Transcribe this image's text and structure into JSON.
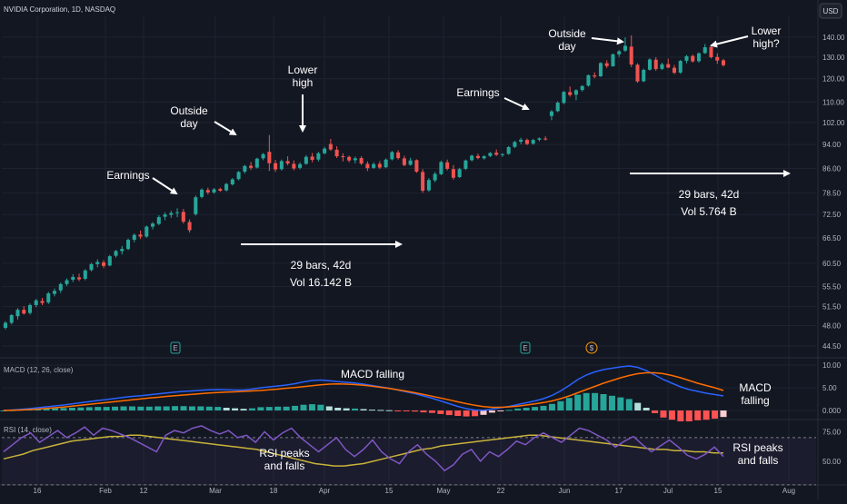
{
  "header": {
    "symbol": "NVIDIA Corporation, 1D, NASDAQ",
    "currency_button": "USD"
  },
  "colors": {
    "up": "#26a69a",
    "down": "#ef5350",
    "macd_line": "#2962ff",
    "signal_line": "#ff6d00",
    "rsi_line": "#7e57c2",
    "rsi_ma": "#c8b33a",
    "background": "#131722",
    "grid": "#1f2330",
    "text": "#b2b5be"
  },
  "chart_data": [
    {
      "type": "candlestick",
      "title": "NVIDIA Corporation, 1D, NASDAQ",
      "y_ticks": [
        "140.00",
        "130.00",
        "120.00",
        "110.00",
        "102.00",
        "94.00",
        "86.00",
        "78.50",
        "72.50",
        "66.50",
        "60.50",
        "55.50",
        "51.50",
        "48.00",
        "44.50"
      ],
      "y_scale": "log",
      "x_ticks": [
        "16",
        "Feb",
        "12",
        "Mar",
        "18",
        "Apr",
        "15",
        "May",
        "22",
        "Jun",
        "17",
        "Jul",
        "15",
        "Aug"
      ],
      "candles": [
        [
          47.6,
          48.8,
          47.3,
          48.5
        ],
        [
          48.5,
          50.1,
          48.2,
          49.9
        ],
        [
          49.7,
          51.2,
          49.1,
          50.9
        ],
        [
          50.9,
          51.6,
          50.0,
          50.2
        ],
        [
          50.3,
          52.1,
          50.0,
          51.8
        ],
        [
          51.8,
          53.0,
          51.4,
          52.7
        ],
        [
          52.6,
          53.2,
          51.8,
          52.2
        ],
        [
          52.3,
          54.4,
          52.0,
          54.1
        ],
        [
          54.0,
          55.1,
          53.5,
          54.6
        ],
        [
          54.7,
          56.3,
          54.2,
          56.0
        ],
        [
          56.0,
          57.2,
          55.6,
          56.8
        ],
        [
          56.9,
          58.1,
          56.4,
          57.5
        ],
        [
          57.4,
          58.2,
          56.6,
          57.0
        ],
        [
          57.1,
          59.2,
          56.8,
          58.9
        ],
        [
          59.0,
          60.6,
          58.7,
          60.3
        ],
        [
          60.3,
          61.4,
          59.6,
          60.8
        ],
        [
          60.7,
          61.2,
          59.4,
          59.9
        ],
        [
          60.0,
          62.4,
          59.8,
          62.1
        ],
        [
          62.2,
          63.6,
          61.8,
          63.3
        ],
        [
          63.3,
          64.5,
          62.5,
          63.8
        ],
        [
          63.8,
          66.3,
          63.5,
          66.0
        ],
        [
          66.0,
          67.6,
          65.4,
          67.2
        ],
        [
          67.3,
          68.3,
          66.2,
          66.8
        ],
        [
          66.8,
          69.6,
          66.5,
          69.3
        ],
        [
          69.3,
          70.5,
          68.6,
          70.1
        ],
        [
          70.0,
          72.3,
          69.7,
          71.8
        ],
        [
          71.9,
          73.1,
          71.0,
          72.5
        ],
        [
          72.4,
          73.5,
          71.6,
          72.9
        ],
        [
          72.9,
          74.2,
          71.8,
          73.1
        ],
        [
          73.2,
          74.0,
          70.1,
          70.6
        ],
        [
          70.5,
          71.2,
          67.8,
          68.4
        ],
        [
          72.6,
          77.8,
          72.2,
          77.3
        ],
        [
          77.4,
          79.9,
          77.0,
          79.5
        ],
        [
          79.4,
          80.1,
          78.1,
          78.7
        ],
        [
          78.7,
          80.0,
          78.3,
          79.6
        ],
        [
          79.7,
          80.1,
          78.9,
          79.2
        ],
        [
          79.3,
          81.5,
          79.0,
          81.2
        ],
        [
          81.1,
          83.0,
          80.7,
          82.6
        ],
        [
          82.7,
          85.2,
          82.3,
          84.9
        ],
        [
          85.0,
          87.2,
          84.4,
          86.8
        ],
        [
          86.9,
          88.1,
          85.5,
          86.2
        ],
        [
          86.3,
          89.5,
          86.0,
          89.2
        ],
        [
          89.3,
          91.1,
          88.7,
          90.7
        ],
        [
          91.5,
          97.4,
          85.2,
          87.7
        ],
        [
          87.7,
          88.8,
          84.9,
          85.7
        ],
        [
          85.8,
          88.9,
          85.3,
          88.4
        ],
        [
          88.4,
          90.0,
          87.0,
          87.6
        ],
        [
          87.5,
          88.6,
          85.4,
          86.0
        ],
        [
          86.2,
          88.0,
          85.7,
          87.4
        ],
        [
          87.5,
          90.4,
          87.2,
          89.8
        ],
        [
          89.9,
          91.1,
          88.0,
          88.8
        ],
        [
          88.9,
          91.5,
          88.3,
          91.0
        ],
        [
          91.0,
          93.2,
          90.6,
          92.6
        ],
        [
          94.2,
          96.0,
          91.8,
          92.3
        ],
        [
          92.2,
          93.4,
          89.4,
          90.0
        ],
        [
          90.0,
          91.0,
          88.3,
          89.7
        ],
        [
          89.8,
          90.2,
          88.0,
          88.6
        ],
        [
          88.7,
          89.9,
          87.6,
          89.3
        ],
        [
          89.4,
          90.0,
          87.1,
          87.6
        ],
        [
          87.5,
          88.3,
          85.2,
          86.1
        ],
        [
          86.2,
          88.0,
          85.9,
          87.4
        ],
        [
          87.5,
          88.4,
          85.8,
          86.3
        ],
        [
          86.4,
          89.3,
          86.1,
          88.9
        ],
        [
          89.0,
          91.8,
          88.6,
          91.4
        ],
        [
          91.3,
          92.0,
          88.9,
          89.4
        ],
        [
          89.3,
          90.2,
          86.7,
          87.1
        ],
        [
          87.2,
          89.5,
          86.9,
          88.6
        ],
        [
          88.7,
          89.0,
          84.6,
          85.0
        ],
        [
          84.9,
          85.8,
          78.6,
          79.2
        ],
        [
          79.3,
          83.0,
          78.9,
          82.4
        ],
        [
          82.3,
          84.9,
          81.7,
          84.3
        ],
        [
          84.2,
          88.6,
          83.9,
          88.1
        ],
        [
          88.0,
          88.9,
          85.4,
          85.9
        ],
        [
          85.8,
          87.1,
          82.5,
          83.1
        ],
        [
          83.3,
          86.2,
          83.0,
          85.8
        ],
        [
          85.9,
          88.9,
          85.5,
          88.6
        ],
        [
          88.7,
          90.5,
          88.3,
          90.2
        ],
        [
          90.1,
          90.9,
          89.0,
          89.4
        ],
        [
          89.3,
          90.4,
          88.9,
          90.0
        ],
        [
          90.1,
          91.4,
          89.7,
          91.1
        ],
        [
          91.2,
          92.3,
          90.1,
          90.5
        ],
        [
          90.4,
          91.0,
          89.8,
          90.7
        ],
        [
          90.8,
          93.5,
          90.5,
          93.1
        ],
        [
          93.2,
          95.3,
          92.8,
          94.9
        ],
        [
          95.0,
          96.4,
          94.1,
          95.7
        ],
        [
          95.6,
          96.1,
          93.8,
          94.2
        ],
        [
          94.3,
          96.0,
          93.9,
          95.6
        ],
        [
          95.7,
          96.5,
          95.1,
          96.2
        ],
        [
          96.1,
          96.9,
          95.4,
          95.8
        ],
        [
          104.5,
          106.8,
          102.9,
          106.3
        ],
        [
          106.4,
          110.4,
          106.0,
          109.8
        ],
        [
          109.7,
          114.7,
          109.2,
          114.3
        ],
        [
          114.2,
          116.6,
          112.3,
          113.0
        ],
        [
          113.1,
          115.4,
          110.8,
          115.0
        ],
        [
          115.1,
          117.2,
          114.4,
          116.8
        ],
        [
          117.0,
          121.9,
          116.5,
          121.6
        ],
        [
          121.5,
          122.9,
          120.2,
          121.0
        ],
        [
          121.1,
          127.6,
          120.8,
          127.2
        ],
        [
          127.1,
          128.5,
          124.9,
          125.8
        ],
        [
          125.7,
          131.8,
          125.5,
          131.4
        ],
        [
          131.4,
          133.5,
          130.1,
          132.9
        ],
        [
          133.2,
          139.9,
          132.6,
          135.6
        ],
        [
          135.2,
          141.0,
          125.3,
          126.5
        ],
        [
          126.4,
          127.1,
          118.2,
          118.8
        ],
        [
          118.9,
          124.6,
          118.5,
          124.0
        ],
        [
          124.1,
          129.5,
          123.7,
          128.9
        ],
        [
          128.8,
          130.0,
          123.6,
          124.4
        ],
        [
          124.5,
          127.4,
          124.0,
          126.6
        ],
        [
          126.7,
          129.3,
          124.8,
          125.1
        ],
        [
          125.0,
          126.3,
          122.1,
          122.7
        ],
        [
          122.8,
          128.7,
          122.2,
          128.2
        ],
        [
          128.3,
          131.1,
          127.1,
          130.5
        ],
        [
          130.6,
          131.2,
          127.4,
          128.0
        ],
        [
          128.1,
          132.3,
          127.4,
          131.9
        ],
        [
          132.0,
          136.5,
          131.6,
          134.9
        ],
        [
          135.0,
          136.2,
          129.4,
          130.0
        ],
        [
          130.1,
          131.9,
          126.8,
          128.4
        ],
        [
          128.5,
          129.2,
          125.6,
          126.2
        ]
      ],
      "annotations": [
        {
          "text": [
            "Earnings"
          ]
        },
        {
          "text": [
            "Outside",
            "day"
          ]
        },
        {
          "text": [
            "Lower",
            "high"
          ]
        },
        {
          "text": [
            "Earnings"
          ]
        },
        {
          "text": [
            "Outside",
            "day"
          ]
        },
        {
          "text": [
            "Lower",
            "high?"
          ]
        }
      ],
      "measurements": [
        {
          "bars_text": "29 bars, 42d",
          "vol_text": "Vol 16.142 B"
        },
        {
          "bars_text": "29 bars, 42d",
          "vol_text": "Vol 5.764 B"
        }
      ],
      "event_markers": [
        "E",
        "E",
        "$"
      ]
    },
    {
      "type": "bar+line",
      "title": "MACD (12, 26, close)",
      "y_ticks": [
        "10.00",
        "5.00",
        "0.000"
      ],
      "ylim": [
        -1.2,
        11.2
      ],
      "annotations": [
        {
          "text": [
            "MACD falling"
          ]
        },
        {
          "text": [
            "MACD",
            "falling"
          ]
        }
      ],
      "macd": [
        0.0,
        0.1,
        0.25,
        0.4,
        0.6,
        0.8,
        1.0,
        1.2,
        1.45,
        1.7,
        1.95,
        2.2,
        2.4,
        2.65,
        2.9,
        3.1,
        3.25,
        3.45,
        3.65,
        3.85,
        4.05,
        4.2,
        4.3,
        4.45,
        4.55,
        4.6,
        4.55,
        4.5,
        4.5,
        4.7,
        5.0,
        5.2,
        5.4,
        5.6,
        5.9,
        6.3,
        6.6,
        6.7,
        6.55,
        6.35,
        6.2,
        6.05,
        5.8,
        5.5,
        5.2,
        4.9,
        4.5,
        4.1,
        3.7,
        3.2,
        2.7,
        2.1,
        1.5,
        0.9,
        0.4,
        0.1,
        0.05,
        0.3,
        0.6,
        0.9,
        1.3,
        1.7,
        2.1,
        2.6,
        3.3,
        4.3,
        5.5,
        6.8,
        7.8,
        8.5,
        9.0,
        9.3,
        9.6,
        9.8,
        9.5,
        8.8,
        7.8,
        6.8,
        6.0,
        5.2,
        4.6,
        4.2,
        3.8,
        3.5,
        3.2
      ],
      "signal": [
        0.0,
        0.05,
        0.1,
        0.2,
        0.3,
        0.45,
        0.6,
        0.75,
        0.95,
        1.15,
        1.35,
        1.55,
        1.75,
        1.95,
        2.15,
        2.35,
        2.55,
        2.75,
        2.9,
        3.1,
        3.25,
        3.4,
        3.55,
        3.7,
        3.85,
        3.95,
        4.05,
        4.1,
        4.2,
        4.3,
        4.4,
        4.55,
        4.7,
        4.9,
        5.05,
        5.25,
        5.45,
        5.65,
        5.8,
        5.85,
        5.8,
        5.7,
        5.55,
        5.35,
        5.1,
        4.85,
        4.55,
        4.25,
        3.9,
        3.55,
        3.15,
        2.75,
        2.35,
        1.9,
        1.5,
        1.15,
        0.85,
        0.7,
        0.7,
        0.8,
        0.95,
        1.2,
        1.45,
        1.75,
        2.1,
        2.6,
        3.2,
        3.9,
        4.6,
        5.3,
        6.0,
        6.6,
        7.2,
        7.7,
        8.1,
        8.3,
        8.3,
        8.1,
        7.7,
        7.2,
        6.6,
        6.0,
        5.5,
        5.0,
        4.4
      ]
    },
    {
      "type": "line",
      "title": "RSI (14, close)",
      "y_ticks": [
        "75.00",
        "50.00"
      ],
      "ylim": [
        33,
        83
      ],
      "annotations": [
        {
          "text": [
            "RSI peaks",
            "and falls"
          ]
        },
        {
          "text": [
            "RSI peaks",
            "and falls"
          ]
        }
      ],
      "rsi": [
        58,
        64,
        70,
        74,
        66,
        71,
        76,
        70,
        74,
        79,
        72,
        78,
        76,
        73,
        70,
        66,
        62,
        58,
        72,
        76,
        74,
        78,
        80,
        76,
        73,
        76,
        70,
        72,
        66,
        75,
        68,
        74,
        78,
        70,
        64,
        58,
        64,
        70,
        60,
        54,
        60,
        68,
        58,
        52,
        48,
        58,
        64,
        56,
        50,
        42,
        47,
        56,
        60,
        50,
        58,
        54,
        60,
        67,
        64,
        70,
        74,
        70,
        66,
        72,
        78,
        76,
        72,
        68,
        62,
        67,
        71,
        64,
        58,
        63,
        68,
        62,
        55,
        52,
        56,
        62,
        54
      ],
      "rsi_ma": [
        52,
        54,
        56,
        59,
        61,
        63,
        65,
        67,
        68,
        69,
        70,
        71,
        71,
        72,
        72,
        71,
        70,
        69,
        68,
        67,
        66,
        65,
        64,
        63,
        62,
        61,
        60,
        58,
        56,
        54,
        52,
        50,
        48,
        47,
        46,
        46,
        47,
        48,
        50,
        52,
        54,
        56,
        58,
        60,
        61,
        63,
        64,
        65,
        66,
        67,
        68,
        69,
        70,
        71,
        72,
        72,
        71,
        70,
        69,
        68,
        67,
        66,
        65,
        64,
        63,
        62,
        61,
        60,
        60,
        59,
        59,
        58,
        58,
        57,
        57
      ]
    }
  ]
}
